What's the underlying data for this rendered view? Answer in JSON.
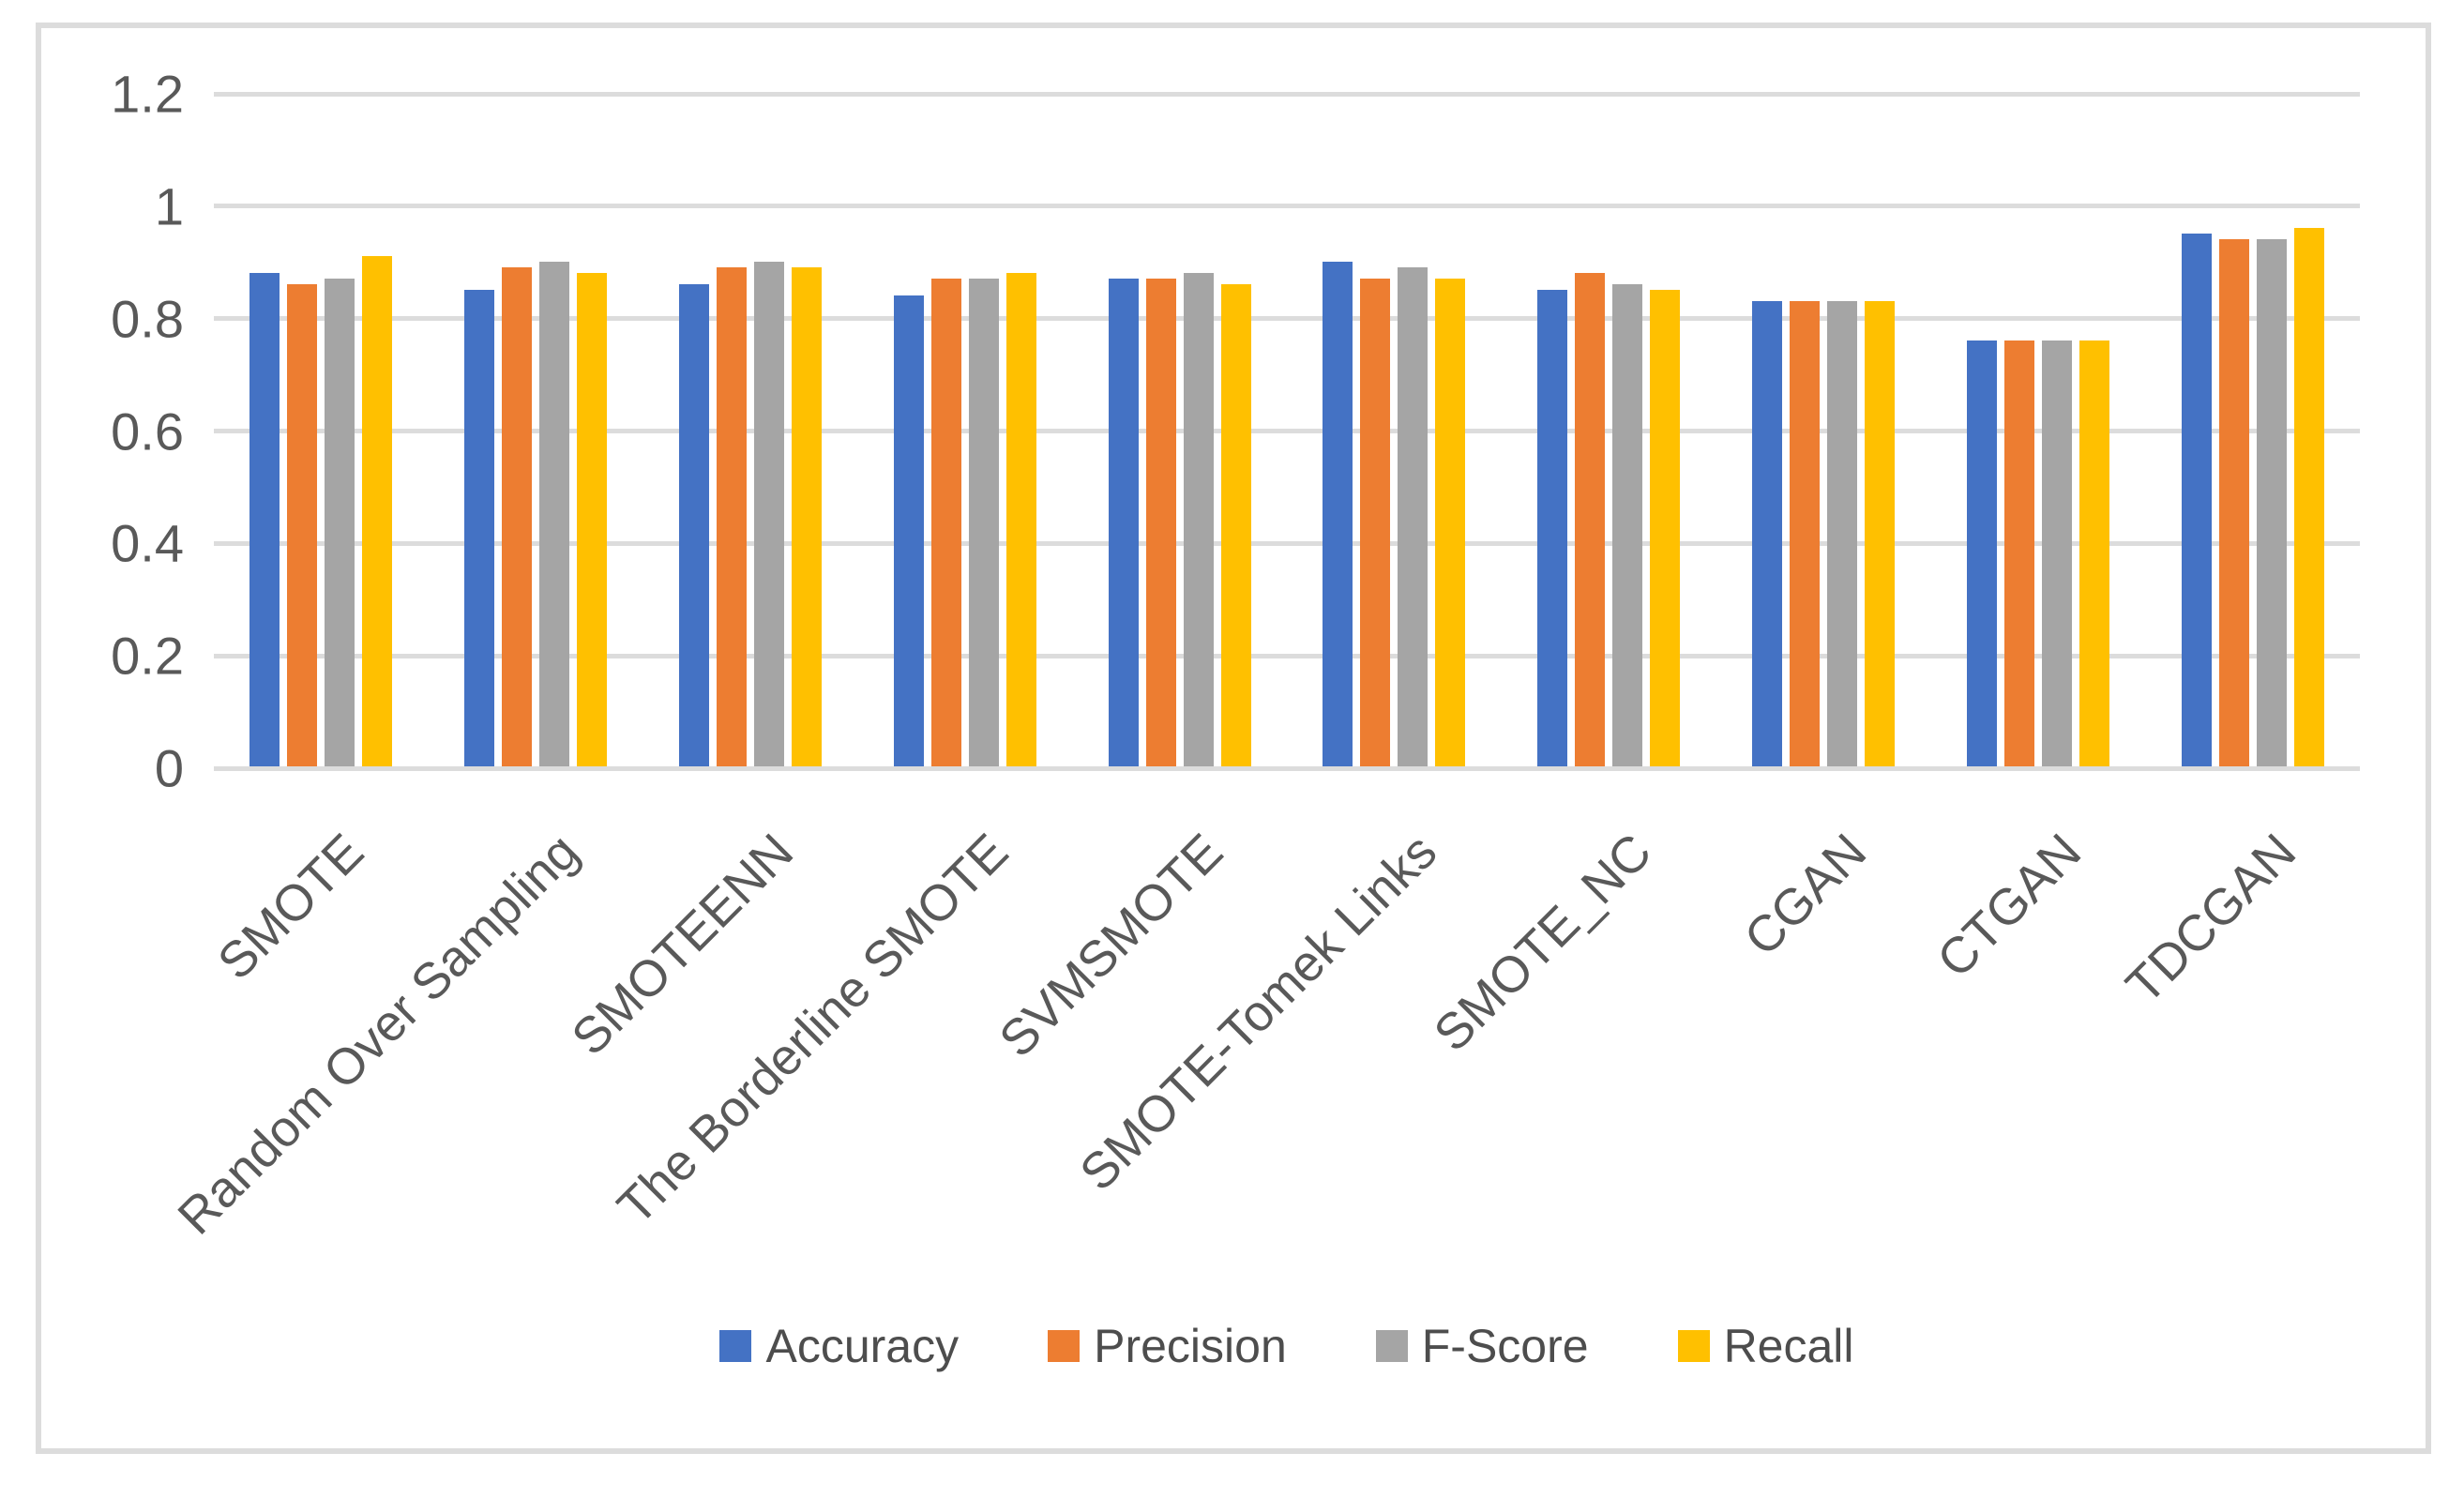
{
  "chart_data": {
    "type": "bar",
    "title": "",
    "xlabel": "",
    "ylabel": "",
    "categories": [
      "SMOTE",
      "Random Over Sampling",
      "SMOTEENN",
      "The Borderline SMOTE",
      "SVMSMOTE",
      "SMOTE-Tomek Links",
      "SMOTE_NC",
      "CGAN",
      "CTGAN",
      "TDCGAN"
    ],
    "series": [
      {
        "name": "Accuracy",
        "color": "#4472C4",
        "values": [
          0.88,
          0.85,
          0.86,
          0.84,
          0.87,
          0.9,
          0.85,
          0.83,
          0.76,
          0.95
        ]
      },
      {
        "name": "Precision",
        "color": "#ED7D31",
        "values": [
          0.86,
          0.89,
          0.89,
          0.87,
          0.87,
          0.87,
          0.88,
          0.83,
          0.76,
          0.94
        ]
      },
      {
        "name": "F-Score",
        "color": "#A5A5A5",
        "values": [
          0.87,
          0.9,
          0.9,
          0.87,
          0.88,
          0.89,
          0.86,
          0.83,
          0.76,
          0.94
        ]
      },
      {
        "name": "Recall",
        "color": "#FFC000",
        "values": [
          0.91,
          0.88,
          0.89,
          0.88,
          0.86,
          0.87,
          0.85,
          0.83,
          0.76,
          0.96
        ]
      }
    ],
    "y_axis": {
      "min": 0,
      "max": 1.2,
      "tick_step": 0.2,
      "tick_labels_top_to_bottom": [
        "1.2",
        "1",
        "0.8",
        "0.6",
        "0.4",
        "0.2",
        "0"
      ]
    },
    "grid": true,
    "legend_position": "bottom",
    "styles": {
      "background": "#FFFFFF",
      "frame_border_color": "#DCDCDC",
      "gridline_color": "#DCDCDC",
      "axis_text_color": "#595959",
      "legend_text_color": "#4D4D4D"
    }
  }
}
